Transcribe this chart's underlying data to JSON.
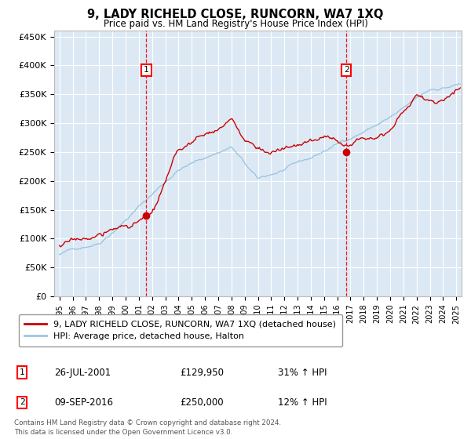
{
  "title": "9, LADY RICHELD CLOSE, RUNCORN, WA7 1XQ",
  "subtitle": "Price paid vs. HM Land Registry's House Price Index (HPI)",
  "plot_bg_color": "#dce9f5",
  "red_line_color": "#cc0000",
  "blue_line_color": "#9fc5e0",
  "ylim": [
    0,
    460000
  ],
  "yticks": [
    0,
    50000,
    100000,
    150000,
    200000,
    250000,
    300000,
    350000,
    400000,
    450000
  ],
  "ytick_labels": [
    "£0",
    "£50K",
    "£100K",
    "£150K",
    "£200K",
    "£250K",
    "£300K",
    "£350K",
    "£400K",
    "£450K"
  ],
  "sale1_x": 2001.57,
  "sale1_y": 129950,
  "sale1_label": "1",
  "sale1_date": "26-JUL-2001",
  "sale1_price": "£129,950",
  "sale1_hpi": "31% ↑ HPI",
  "sale2_x": 2016.69,
  "sale2_y": 250000,
  "sale2_label": "2",
  "sale2_date": "09-SEP-2016",
  "sale2_price": "£250,000",
  "sale2_hpi": "12% ↑ HPI",
  "legend_line1": "9, LADY RICHELD CLOSE, RUNCORN, WA7 1XQ (detached house)",
  "legend_line2": "HPI: Average price, detached house, Halton",
  "footer": "Contains HM Land Registry data © Crown copyright and database right 2024.\nThis data is licensed under the Open Government Licence v3.0.",
  "xmin": 1994.6,
  "xmax": 2025.4
}
